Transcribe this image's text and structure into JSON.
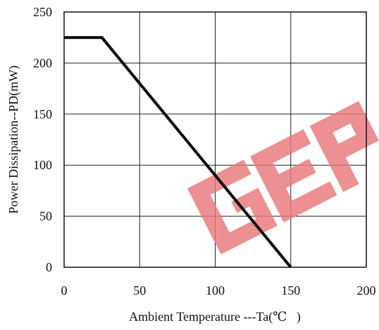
{
  "chart_data": {
    "type": "line",
    "title": "",
    "xlabel": "Ambient Temperature ---Ta(℃   )",
    "ylabel": "Power Dissipation--PD(mW)",
    "xlim": [
      0,
      200
    ],
    "ylim": [
      0,
      250
    ],
    "x_ticks": [
      0,
      50,
      100,
      150,
      200
    ],
    "y_ticks": [
      0,
      50,
      100,
      150,
      200,
      250
    ],
    "x_tick_labels": [
      "0",
      "50",
      "100",
      "150",
      "200"
    ],
    "y_tick_labels": [
      "0",
      "50",
      "100",
      "150",
      "200",
      "250"
    ],
    "grid": true,
    "series": [
      {
        "x": [
          0,
          25,
          150
        ],
        "y": [
          225,
          225,
          0
        ],
        "color": "#000000"
      }
    ]
  },
  "watermark": {
    "text": "GEP",
    "color": "#e8787c"
  }
}
